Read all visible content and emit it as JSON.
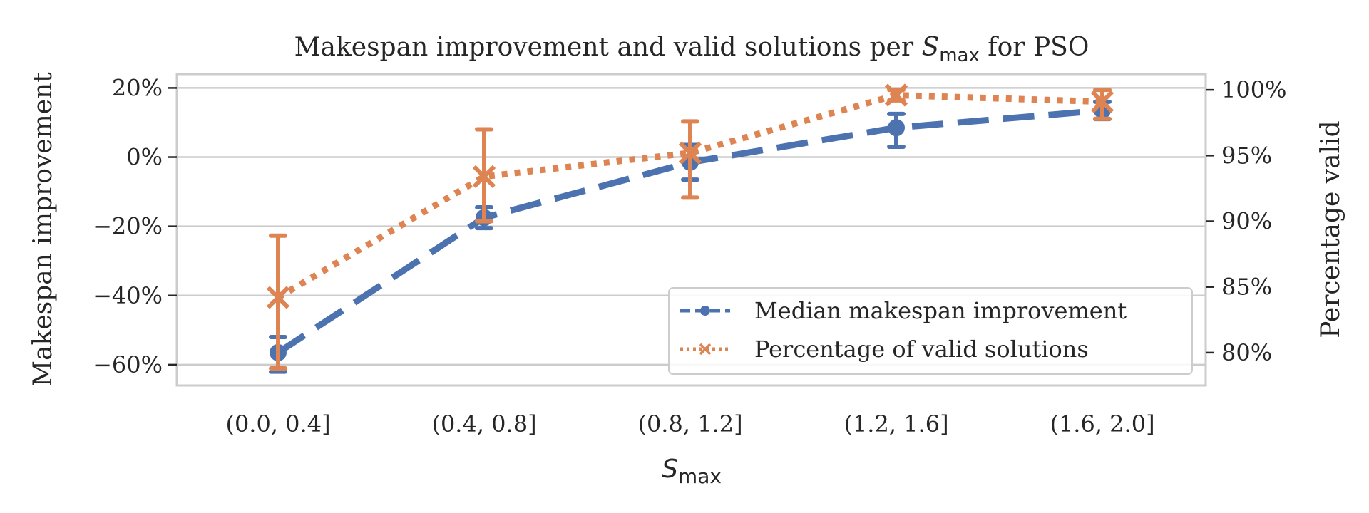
{
  "chart_data": {
    "type": "line",
    "title": {
      "before": "Makespan improvement and valid solutions per ",
      "symbol": "S",
      "subscript": "max",
      "after": " for PSO"
    },
    "xlabel": {
      "symbol": "S",
      "subscript": "max"
    },
    "ylabel_left": "Makespan improvement",
    "ylabel_right": "Percentage valid",
    "categories": [
      "(0.0, 0.4]",
      "(0.4, 0.8]",
      "(0.8, 1.2]",
      "(1.2, 1.6]",
      "(1.6, 2.0]"
    ],
    "ylim_left": [
      -66,
      24
    ],
    "ylim_right": [
      77.5,
      101.2
    ],
    "yticks_left": [
      {
        "value": 20,
        "label": "20%"
      },
      {
        "value": 0,
        "label": "0%"
      },
      {
        "value": -20,
        "label": "−20%"
      },
      {
        "value": -40,
        "label": "−40%"
      },
      {
        "value": -60,
        "label": "−60%"
      }
    ],
    "yticks_right": [
      {
        "value": 100,
        "label": "100%"
      },
      {
        "value": 95,
        "label": "95%"
      },
      {
        "value": 90,
        "label": "90%"
      },
      {
        "value": 85,
        "label": "85%"
      },
      {
        "value": 80,
        "label": "80%"
      }
    ],
    "grid": true,
    "legend_position": "lower-right",
    "series": [
      {
        "name": "Median makespan improvement",
        "axis": "left",
        "color": "#4c72b0",
        "line_style": "dashed",
        "marker": "circle",
        "values": [
          -56.5,
          -17.5,
          -1.5,
          8.5,
          13.5
        ],
        "error_low": [
          -62,
          -20.5,
          -6.5,
          3,
          11
        ],
        "error_high": [
          -52,
          -14.5,
          3.5,
          12.5,
          16
        ]
      },
      {
        "name": "Percentage of valid solutions",
        "axis": "right",
        "color": "#dd8452",
        "line_style": "dotted",
        "marker": "x",
        "values": [
          84.2,
          93.4,
          95.2,
          99.6,
          99.1
        ],
        "error_low": [
          78.8,
          90,
          91.8,
          99.2,
          97.8
        ],
        "error_high": [
          88.9,
          97,
          97.6,
          100,
          100
        ]
      }
    ]
  }
}
